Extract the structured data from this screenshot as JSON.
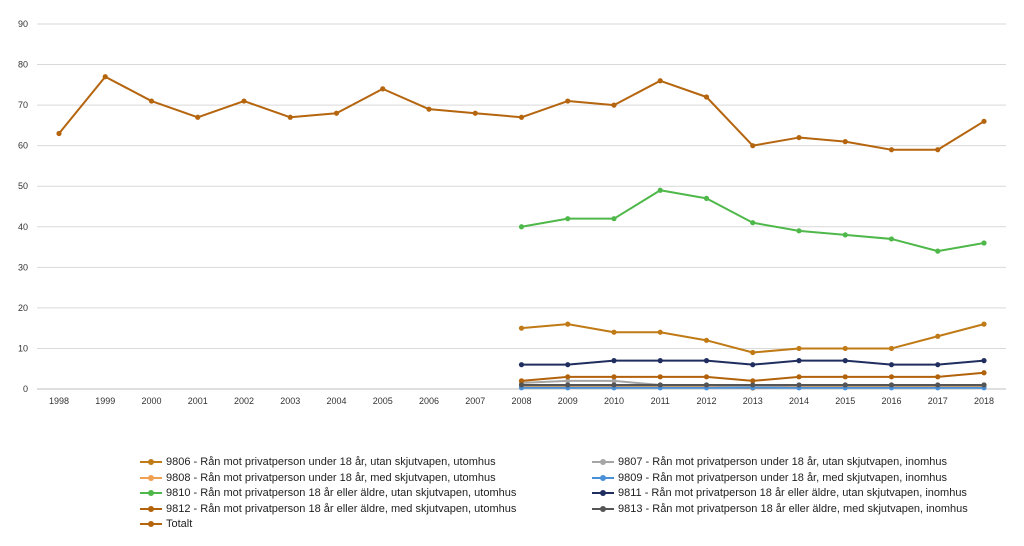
{
  "chart_data": {
    "type": "line",
    "ylim": [
      0,
      90
    ],
    "yticks": [
      0,
      10,
      20,
      30,
      40,
      50,
      60,
      70,
      80,
      90
    ],
    "x": [
      "1998",
      "1999",
      "2000",
      "2001",
      "2002",
      "2003",
      "2004",
      "2005",
      "2006",
      "2007",
      "2008",
      "2009",
      "2010",
      "2011",
      "2012",
      "2013",
      "2014",
      "2015",
      "2016",
      "2017",
      "2018"
    ],
    "grid": true,
    "legend_position": "bottom",
    "series": [
      {
        "name": "9806 - Rån mot privatperson under 18 år, utan skjutvapen, utomhus",
        "color": "#c07a16",
        "values": [
          null,
          null,
          null,
          null,
          null,
          null,
          null,
          null,
          null,
          null,
          15,
          16,
          14,
          14,
          12,
          9,
          10,
          10,
          10,
          13,
          16
        ]
      },
      {
        "name": "9807 - Rån mot privatperson under 18 år, utan skjutvapen, inomhus",
        "color": "#a6a6a6",
        "values": [
          null,
          null,
          null,
          null,
          null,
          null,
          null,
          null,
          null,
          null,
          1.5,
          2,
          2,
          1,
          1,
          0.5,
          1,
          1,
          1,
          1,
          1
        ]
      },
      {
        "name": "9808 - Rån mot privatperson under 18 år, med skjutvapen, utomhus",
        "color": "#f0a050",
        "values": [
          null,
          null,
          null,
          null,
          null,
          null,
          null,
          null,
          null,
          null,
          0.5,
          0.5,
          0.5,
          0.5,
          0.5,
          0.2,
          0.5,
          0.5,
          0.5,
          0.5,
          0.5
        ]
      },
      {
        "name": "9809 - Rån mot privatperson under 18 år, med skjutvapen, inomhus",
        "color": "#4a90d9",
        "values": [
          null,
          null,
          null,
          null,
          null,
          null,
          null,
          null,
          null,
          null,
          0.3,
          0.3,
          0.3,
          0.3,
          0.3,
          0.3,
          0.3,
          0.3,
          0.3,
          0.3,
          0.3
        ]
      },
      {
        "name": "9810 - Rån mot privatperson 18 år eller äldre, utan skjutvapen, utomhus",
        "color": "#4fb84a",
        "values": [
          null,
          null,
          null,
          null,
          null,
          null,
          null,
          null,
          null,
          null,
          40,
          42,
          42,
          49,
          47,
          41,
          39,
          38,
          37,
          34,
          36
        ]
      },
      {
        "name": "9811 - Rån mot privatperson 18 år eller äldre, utan skjutvapen, inomhus",
        "color": "#1f2e5e",
        "values": [
          null,
          null,
          null,
          null,
          null,
          null,
          null,
          null,
          null,
          null,
          6,
          6,
          7,
          7,
          7,
          6,
          7,
          7,
          6,
          6,
          7
        ]
      },
      {
        "name": "9812 - Rån mot privatperson 18 år eller äldre, med skjutvapen, utomhus",
        "color": "#b3620c",
        "values": [
          null,
          null,
          null,
          null,
          null,
          null,
          null,
          null,
          null,
          null,
          2,
          3,
          3,
          3,
          3,
          2,
          3,
          3,
          3,
          3,
          4
        ]
      },
      {
        "name": "9813 - Rån mot privatperson 18 år eller äldre, med skjutvapen, inomhus",
        "color": "#555555",
        "values": [
          null,
          null,
          null,
          null,
          null,
          null,
          null,
          null,
          null,
          null,
          1,
          1,
          1,
          1,
          1,
          1,
          1,
          1,
          1,
          1,
          1
        ]
      },
      {
        "name": "Totalt",
        "color": "#b5650e",
        "values": [
          63,
          77,
          71,
          67,
          71,
          67,
          68,
          74,
          69,
          68,
          67,
          71,
          70,
          76,
          72,
          60,
          62,
          61,
          59,
          59,
          66
        ]
      }
    ]
  },
  "legend": {
    "left_column": [
      0,
      2,
      4,
      6,
      8
    ],
    "right_column": [
      1,
      3,
      5,
      7
    ]
  }
}
